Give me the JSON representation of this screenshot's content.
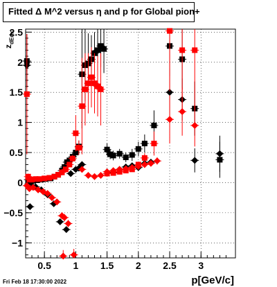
{
  "chart_data": {
    "type": "scatter",
    "title": "Fitted Δ M^2 versus η and p for Global pion+",
    "xlabel": "p[GeV/c]",
    "ylabel_main": "z",
    "ylabel_sub": "dEdx",
    "xlim": [
      0.2,
      3.55
    ],
    "ylim": [
      -1.25,
      2.55
    ],
    "xticks": [
      0.5,
      1,
      1.5,
      2,
      2.5,
      3
    ],
    "yticks": [
      -1,
      -0.5,
      0,
      0.5,
      1,
      1.5,
      2,
      2.5
    ],
    "xtick_labels": [
      "0.5",
      "1",
      "1.5",
      "2",
      "2.5",
      "3"
    ],
    "ytick_labels": [
      "−1",
      "−0.5",
      "0",
      "0.5",
      "1",
      "1.5",
      "2",
      "2.5"
    ],
    "grid": true,
    "series": [
      {
        "marker": "square",
        "color": "#000000",
        "points": [
          [
            0.22,
            2.02,
            0.45
          ],
          [
            0.24,
            0.05,
            0.05
          ],
          [
            0.25,
            -0.02,
            0.02
          ],
          [
            0.28,
            0.02,
            0.02
          ],
          [
            0.32,
            0.03,
            0.01
          ],
          [
            0.38,
            0.04,
            0.01
          ],
          [
            0.45,
            0.05,
            0.01
          ],
          [
            0.52,
            0.06,
            0.01
          ],
          [
            0.6,
            0.07,
            0.01
          ],
          [
            0.66,
            0.1,
            0.02
          ],
          [
            0.72,
            0.13,
            0.02
          ],
          [
            0.78,
            0.2,
            0.03
          ],
          [
            0.82,
            0.26,
            0.03
          ],
          [
            0.86,
            0.34,
            0.04
          ],
          [
            0.9,
            0.37,
            0.05
          ],
          [
            0.95,
            0.43,
            0.06
          ],
          [
            1.0,
            0.5,
            0.08
          ],
          [
            1.05,
            0.6,
            0.1
          ],
          [
            1.1,
            1.8,
            0.9
          ],
          [
            1.15,
            1.95,
            0.6
          ],
          [
            1.2,
            1.98,
            0.5
          ],
          [
            1.25,
            2.05,
            0.4
          ],
          [
            1.3,
            2.15,
            0.35
          ],
          [
            1.35,
            2.2,
            0.35
          ],
          [
            1.4,
            2.27,
            0.35
          ],
          [
            1.45,
            2.22,
            0.4
          ],
          [
            1.5,
            0.55,
            0.1
          ],
          [
            1.55,
            0.47,
            0.08
          ],
          [
            1.6,
            0.45,
            0.08
          ],
          [
            1.7,
            0.48,
            0.08
          ],
          [
            1.8,
            0.42,
            0.08
          ],
          [
            1.9,
            0.46,
            0.1
          ],
          [
            2.0,
            0.56,
            0.12
          ],
          [
            2.1,
            0.65,
            0.15
          ],
          [
            2.25,
            0.95,
            0.25
          ],
          [
            2.5,
            2.27,
            0.5
          ],
          [
            2.7,
            2.05,
            0.5
          ],
          [
            2.9,
            1.23,
            0.45
          ],
          [
            3.3,
            0.38,
            0.3
          ]
        ]
      },
      {
        "marker": "diamond",
        "color": "#000000",
        "points": [
          [
            0.22,
            1.95,
            0.1
          ],
          [
            0.24,
            -0.05,
            0.03
          ],
          [
            0.27,
            -0.4,
            0.05
          ],
          [
            0.3,
            -0.05,
            0.02
          ],
          [
            0.36,
            -0.07,
            0.02
          ],
          [
            0.45,
            -0.12,
            0.02
          ],
          [
            0.55,
            -0.2,
            0.03
          ],
          [
            0.65,
            -0.35,
            0.04
          ],
          [
            0.75,
            -0.65,
            0.05
          ],
          [
            0.85,
            -0.78,
            0.05
          ],
          [
            0.92,
            0.15,
            0.03
          ],
          [
            1.0,
            0.22,
            0.03
          ],
          [
            1.05,
            0.24,
            0.03
          ],
          [
            1.1,
            0.3,
            0.04
          ],
          [
            1.6,
            0.17,
            0.04
          ],
          [
            1.7,
            0.22,
            0.04
          ],
          [
            1.8,
            0.26,
            0.04
          ],
          [
            1.9,
            0.28,
            0.04
          ],
          [
            2.0,
            0.25,
            0.05
          ],
          [
            2.1,
            0.32,
            0.05
          ],
          [
            2.2,
            0.34,
            0.05
          ],
          [
            2.5,
            1.5,
            0.4
          ],
          [
            2.7,
            1.38,
            0.35
          ],
          [
            2.9,
            0.37,
            0.2
          ],
          [
            3.3,
            0.48,
            0.3
          ]
        ]
      },
      {
        "marker": "square",
        "color": "#ff0000",
        "points": [
          [
            0.22,
            1.47,
            1.0
          ],
          [
            0.24,
            0.1,
            0.05
          ],
          [
            0.26,
            0.05,
            0.02
          ],
          [
            0.3,
            0.05,
            0.01
          ],
          [
            0.36,
            0.06,
            0.01
          ],
          [
            0.42,
            0.06,
            0.01
          ],
          [
            0.5,
            0.07,
            0.01
          ],
          [
            0.58,
            0.08,
            0.01
          ],
          [
            0.66,
            0.1,
            0.02
          ],
          [
            0.72,
            0.13,
            0.02
          ],
          [
            0.78,
            0.17,
            0.03
          ],
          [
            0.84,
            0.22,
            0.03
          ],
          [
            0.9,
            0.3,
            0.04
          ],
          [
            0.95,
            0.4,
            0.06
          ],
          [
            1.0,
            0.82,
            0.3
          ],
          [
            1.05,
            0.58,
            0.12
          ],
          [
            1.1,
            1.27,
            0.8
          ],
          [
            1.15,
            1.55,
            0.6
          ],
          [
            1.2,
            1.65,
            0.5
          ],
          [
            1.25,
            1.75,
            0.5
          ],
          [
            1.3,
            1.65,
            0.5
          ],
          [
            1.35,
            1.6,
            0.5
          ],
          [
            1.4,
            1.55,
            0.6
          ],
          [
            1.5,
            0.15,
            0.05
          ],
          [
            1.6,
            0.16,
            0.04
          ],
          [
            1.7,
            0.18,
            0.04
          ],
          [
            1.8,
            0.2,
            0.04
          ],
          [
            1.9,
            0.22,
            0.04
          ],
          [
            2.0,
            0.3,
            0.05
          ],
          [
            2.1,
            0.41,
            0.08
          ],
          [
            2.25,
            0.65,
            0.2
          ],
          [
            2.5,
            2.52,
            1.0
          ],
          [
            2.7,
            2.2,
            1.0
          ],
          [
            2.9,
            2.2,
            1.0
          ]
        ]
      },
      {
        "marker": "diamond",
        "color": "#ff0000",
        "points": [
          [
            0.22,
            -0.05,
            0.05
          ],
          [
            0.26,
            -0.1,
            0.03
          ],
          [
            0.32,
            -0.08,
            0.02
          ],
          [
            0.4,
            -0.12,
            0.02
          ],
          [
            0.48,
            -0.15,
            0.02
          ],
          [
            0.55,
            -0.18,
            0.02
          ],
          [
            0.62,
            -0.25,
            0.03
          ],
          [
            0.7,
            -0.32,
            0.04
          ],
          [
            0.78,
            -0.55,
            0.06
          ],
          [
            0.82,
            -0.58,
            0.06
          ],
          [
            0.88,
            -0.68,
            0.06
          ],
          [
            0.8,
            -1.22,
            0.1
          ],
          [
            0.97,
            -1.2,
            0.1
          ],
          [
            1.1,
            0.22,
            0.04
          ],
          [
            1.2,
            0.12,
            0.03
          ],
          [
            1.3,
            0.1,
            0.03
          ],
          [
            1.4,
            0.12,
            0.03
          ],
          [
            1.5,
            0.18,
            0.04
          ],
          [
            1.6,
            0.2,
            0.04
          ],
          [
            1.7,
            0.22,
            0.04
          ],
          [
            1.8,
            0.23,
            0.04
          ],
          [
            1.9,
            0.25,
            0.04
          ],
          [
            2.0,
            0.27,
            0.04
          ],
          [
            2.1,
            0.3,
            0.05
          ],
          [
            2.2,
            0.32,
            0.05
          ],
          [
            2.3,
            0.36,
            0.06
          ],
          [
            2.5,
            1.05,
            0.4
          ],
          [
            2.7,
            1.18,
            0.4
          ],
          [
            2.9,
            0.95,
            0.35
          ]
        ]
      }
    ]
  },
  "footer": {
    "timestamp": "Fri Feb 18 17:30:00 2022"
  }
}
